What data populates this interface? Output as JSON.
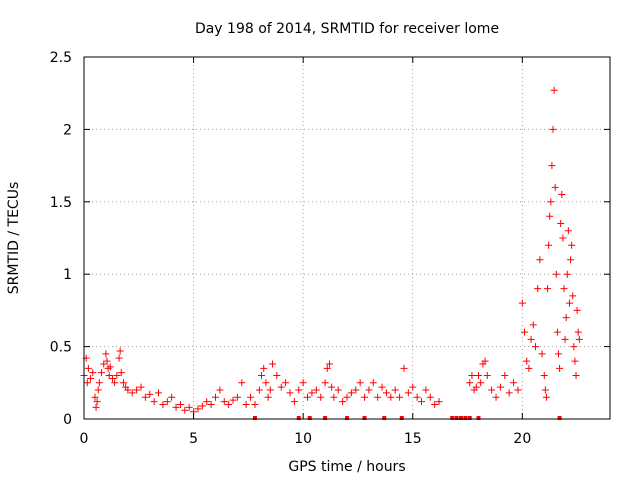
{
  "chart_data": {
    "type": "scatter",
    "title": "Day 198 of 2014, SRMTID for receiver lome",
    "xlabel": "GPS time / hours",
    "ylabel": "SRMTID / TECUs",
    "xlim": [
      0,
      24
    ],
    "ylim": [
      0,
      2.5
    ],
    "xticks": [
      0,
      5,
      10,
      15,
      20
    ],
    "xtick_labels": [
      "0",
      "5",
      "10",
      "15",
      "20"
    ],
    "yticks": [
      0,
      0.5,
      1,
      1.5,
      2,
      2.5
    ],
    "ytick_labels": [
      "0",
      "0.5",
      "1",
      "1.5",
      "2",
      "2.5"
    ],
    "grid": true,
    "marker": "+",
    "series": [
      {
        "name": "SRMTID",
        "color": "#ff0000",
        "x": [
          0.0,
          0.1,
          0.15,
          0.2,
          0.3,
          0.4,
          0.5,
          0.55,
          0.6,
          0.65,
          0.7,
          0.8,
          0.9,
          1.0,
          1.05,
          1.1,
          1.15,
          1.2,
          1.3,
          1.4,
          1.5,
          1.6,
          1.65,
          1.7,
          1.8,
          1.9,
          2.0,
          2.2,
          2.4,
          2.6,
          2.8,
          3.0,
          3.2,
          3.4,
          3.6,
          3.8,
          4.0,
          4.2,
          4.4,
          4.6,
          4.8,
          5.0,
          5.2,
          5.4,
          5.6,
          5.8,
          6.0,
          6.2,
          6.4,
          6.6,
          6.8,
          7.0,
          7.2,
          7.4,
          7.6,
          7.8,
          8.0,
          8.1,
          8.2,
          8.3,
          8.4,
          8.5,
          8.6,
          8.8,
          9.0,
          9.2,
          9.4,
          9.6,
          9.8,
          10.0,
          10.2,
          10.4,
          10.6,
          10.8,
          11.0,
          11.1,
          11.2,
          11.3,
          11.4,
          11.6,
          11.8,
          12.0,
          12.2,
          12.4,
          12.6,
          12.8,
          13.0,
          13.2,
          13.4,
          13.6,
          13.8,
          14.0,
          14.2,
          14.4,
          14.6,
          14.8,
          15.0,
          15.2,
          15.4,
          15.6,
          15.8,
          16.0,
          16.2,
          17.6,
          17.7,
          17.8,
          17.9,
          18.0,
          18.1,
          18.2,
          18.3,
          18.4,
          18.6,
          18.8,
          19.0,
          19.2,
          19.4,
          19.6,
          19.8,
          20.0,
          20.1,
          20.2,
          20.3,
          20.4,
          20.5,
          20.6,
          20.7,
          20.8,
          20.9,
          21.0,
          21.05,
          21.1,
          21.15,
          21.2,
          21.25,
          21.3,
          21.35,
          21.4,
          21.45,
          21.5,
          21.55,
          21.6,
          21.65,
          21.7,
          21.75,
          21.8,
          21.85,
          21.9,
          21.95,
          22.0,
          22.05,
          22.1,
          22.15,
          22.2,
          22.25,
          22.3,
          22.35,
          22.4,
          22.45,
          22.5,
          22.55,
          22.6
        ],
        "y": [
          0.3,
          0.42,
          0.25,
          0.35,
          0.28,
          0.32,
          0.15,
          0.08,
          0.12,
          0.2,
          0.25,
          0.32,
          0.38,
          0.45,
          0.4,
          0.35,
          0.3,
          0.36,
          0.28,
          0.25,
          0.3,
          0.42,
          0.47,
          0.32,
          0.25,
          0.22,
          0.2,
          0.18,
          0.2,
          0.22,
          0.15,
          0.17,
          0.12,
          0.18,
          0.1,
          0.12,
          0.15,
          0.08,
          0.1,
          0.06,
          0.08,
          0.05,
          0.07,
          0.09,
          0.12,
          0.1,
          0.15,
          0.2,
          0.12,
          0.1,
          0.13,
          0.15,
          0.25,
          0.1,
          0.15,
          0.1,
          0.2,
          0.3,
          0.35,
          0.25,
          0.15,
          0.2,
          0.38,
          0.3,
          0.22,
          0.25,
          0.18,
          0.12,
          0.2,
          0.25,
          0.15,
          0.18,
          0.2,
          0.15,
          0.25,
          0.35,
          0.38,
          0.22,
          0.15,
          0.2,
          0.12,
          0.15,
          0.18,
          0.2,
          0.25,
          0.15,
          0.2,
          0.25,
          0.15,
          0.22,
          0.18,
          0.15,
          0.2,
          0.15,
          0.35,
          0.18,
          0.22,
          0.15,
          0.12,
          0.2,
          0.15,
          0.1,
          0.12,
          0.25,
          0.3,
          0.2,
          0.22,
          0.3,
          0.25,
          0.38,
          0.4,
          0.3,
          0.2,
          0.15,
          0.22,
          0.3,
          0.18,
          0.25,
          0.2,
          0.8,
          0.6,
          0.4,
          0.35,
          0.55,
          0.65,
          0.5,
          0.9,
          1.1,
          0.45,
          0.3,
          0.2,
          0.15,
          0.9,
          1.2,
          1.4,
          1.5,
          1.75,
          2.0,
          2.27,
          1.6,
          1.0,
          0.6,
          0.45,
          0.35,
          1.35,
          1.55,
          1.25,
          0.9,
          0.55,
          0.7,
          1.0,
          1.3,
          0.8,
          1.1,
          1.2,
          0.85,
          0.5,
          0.4,
          0.3,
          0.75,
          0.6,
          0.55
        ]
      }
    ],
    "gap_markers_x": [
      7.8,
      9.8,
      10.3,
      11.0,
      12.0,
      12.8,
      13.7,
      14.5,
      16.8,
      17.0,
      17.2,
      17.4,
      17.6,
      18.0,
      21.7
    ]
  }
}
